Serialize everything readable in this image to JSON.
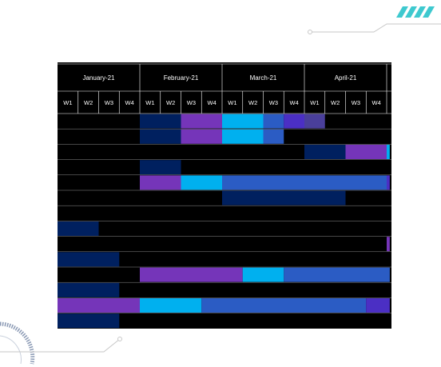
{
  "colors": {
    "bg": "#000000",
    "grid": "#ffffff",
    "header_text": "#ffffff",
    "accent_teal": "#3ec9cf",
    "line_gray": "#c7c7c7",
    "navy": "#00205f",
    "purple": "#7535b9",
    "cyan": "#00b0ef",
    "blue": "#2b5cc4",
    "indigo": "#4b2fc4",
    "slate": "#4a3f9b"
  },
  "decorations": {
    "top_right": "slash-stripes-icon",
    "bottom_left": "circular-arc-icon"
  },
  "chart_data": {
    "type": "gantt",
    "months": [
      {
        "label": "January-21",
        "weeks": [
          "W1",
          "W2",
          "W3",
          "W4"
        ]
      },
      {
        "label": "February-21",
        "weeks": [
          "W1",
          "W2",
          "W3",
          "W4"
        ]
      },
      {
        "label": "March-21",
        "weeks": [
          "W1",
          "W2",
          "W3",
          "W4"
        ]
      },
      {
        "label": "April-21",
        "weeks": [
          "W1",
          "W2",
          "W3",
          "W4"
        ]
      }
    ],
    "rows": [
      {
        "segments": [
          {
            "start": 4,
            "end": 6,
            "color": "navy"
          },
          {
            "start": 6,
            "end": 8,
            "color": "purple"
          },
          {
            "start": 8,
            "end": 10,
            "color": "cyan"
          },
          {
            "start": 10,
            "end": 11,
            "color": "blue"
          },
          {
            "start": 11,
            "end": 12,
            "color": "indigo"
          },
          {
            "start": 12,
            "end": 13,
            "color": "slate"
          }
        ]
      },
      {
        "segments": [
          {
            "start": 4,
            "end": 6,
            "color": "navy"
          },
          {
            "start": 6,
            "end": 8,
            "color": "purple"
          },
          {
            "start": 8,
            "end": 10,
            "color": "cyan"
          },
          {
            "start": 10,
            "end": 11,
            "color": "blue"
          }
        ]
      },
      {
        "segments": [
          {
            "start": 12,
            "end": 14,
            "color": "navy"
          },
          {
            "start": 14,
            "end": 16,
            "color": "purple"
          },
          {
            "start": 16,
            "end": 16.15,
            "color": "cyan"
          }
        ]
      },
      {
        "segments": [
          {
            "start": 4,
            "end": 6,
            "color": "navy"
          }
        ]
      },
      {
        "segments": [
          {
            "start": 4,
            "end": 6,
            "color": "purple"
          },
          {
            "start": 6,
            "end": 8,
            "color": "cyan"
          },
          {
            "start": 8,
            "end": 16,
            "color": "blue"
          },
          {
            "start": 16,
            "end": 16.15,
            "color": "indigo"
          }
        ]
      },
      {
        "segments": [
          {
            "start": 8,
            "end": 14,
            "color": "navy"
          }
        ]
      },
      {
        "segments": []
      },
      {
        "segments": [
          {
            "start": 0,
            "end": 2,
            "color": "navy"
          }
        ]
      },
      {
        "segments": [
          {
            "start": 16,
            "end": 16.15,
            "color": "purple"
          }
        ]
      },
      {
        "segments": [
          {
            "start": 0,
            "end": 3,
            "color": "navy"
          }
        ]
      },
      {
        "segments": [
          {
            "start": 4,
            "end": 9,
            "color": "purple"
          },
          {
            "start": 9,
            "end": 11,
            "color": "cyan"
          },
          {
            "start": 11,
            "end": 16.15,
            "color": "blue"
          }
        ]
      },
      {
        "segments": [
          {
            "start": 0,
            "end": 3,
            "color": "navy"
          }
        ]
      },
      {
        "segments": [
          {
            "start": 0,
            "end": 4,
            "color": "purple"
          },
          {
            "start": 4,
            "end": 7,
            "color": "cyan"
          },
          {
            "start": 7,
            "end": 15,
            "color": "blue"
          },
          {
            "start": 15,
            "end": 16.15,
            "color": "indigo"
          }
        ]
      },
      {
        "segments": [
          {
            "start": 0,
            "end": 3,
            "color": "navy"
          }
        ]
      }
    ]
  }
}
